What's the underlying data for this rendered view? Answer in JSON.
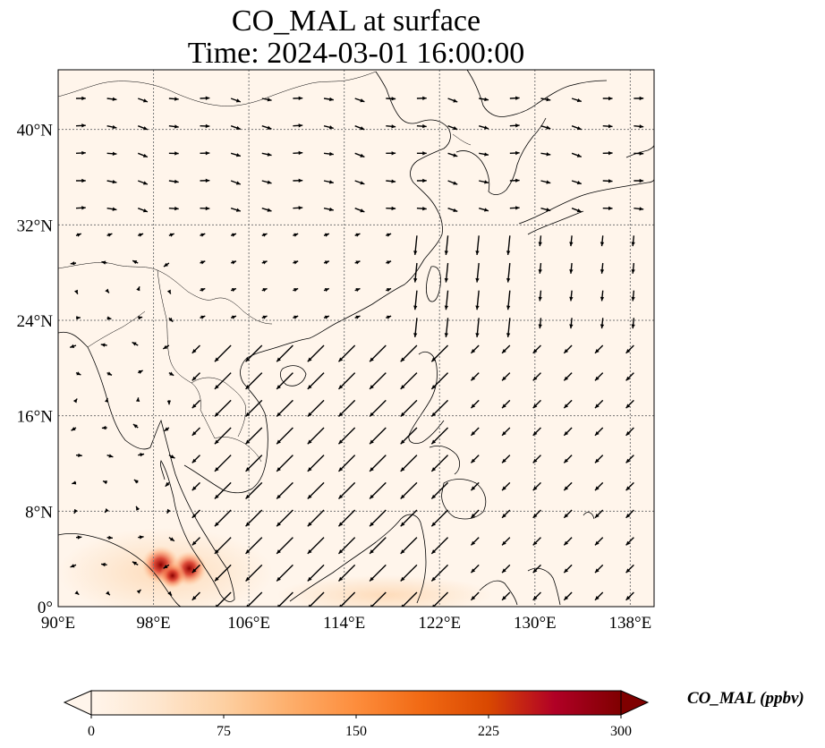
{
  "title_line1": "CO_MAL at surface",
  "title_line2": "Time: 2024-03-01 16:00:00",
  "colorbar": {
    "label": "CO_MAL (ppbv)",
    "ticks": [
      "0",
      "75",
      "150",
      "225",
      "300"
    ],
    "min": 0,
    "max": 300,
    "colors": [
      "#fff5eb",
      "#fee6ce",
      "#fdd0a2",
      "#fdae6b",
      "#fd8d3c",
      "#f16913",
      "#d94801",
      "#b10026",
      "#7f0000"
    ]
  },
  "map": {
    "lon_range": [
      90,
      140
    ],
    "lat_range": [
      0,
      45
    ],
    "lon_ticks": [
      {
        "value": 90,
        "label": "90°E"
      },
      {
        "value": 98,
        "label": "98°E"
      },
      {
        "value": 106,
        "label": "106°E"
      },
      {
        "value": 114,
        "label": "114°E"
      },
      {
        "value": 122,
        "label": "122°E"
      },
      {
        "value": 130,
        "label": "130°E"
      },
      {
        "value": 138,
        "label": "138°E"
      }
    ],
    "lat_ticks": [
      {
        "value": 0,
        "label": "0°"
      },
      {
        "value": 8,
        "label": "8°N"
      },
      {
        "value": 16,
        "label": "16°N"
      },
      {
        "value": 24,
        "label": "24°N"
      },
      {
        "value": 32,
        "label": "32°N"
      },
      {
        "value": 40,
        "label": "40°N"
      }
    ],
    "background_color": "#fff5eb",
    "hotspots": [
      {
        "lon": 98.6,
        "lat": 3.5,
        "value": 290
      },
      {
        "lon": 101.0,
        "lat": 3.2,
        "value": 250
      },
      {
        "lon": 99.6,
        "lat": 2.6,
        "value": 150
      }
    ]
  }
}
